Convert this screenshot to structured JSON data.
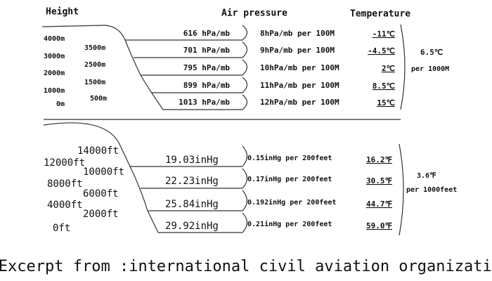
{
  "metric": {
    "headers": {
      "height": "Height",
      "pressure": "Air pressure",
      "temperature": "Temperature"
    },
    "heights_left": [
      "4000m",
      "3000m",
      "2000m",
      "1000m",
      "0m"
    ],
    "heights_right": [
      "3500m",
      "2500m",
      "1500m",
      "500m"
    ],
    "pressures": [
      "616 hPa/mb",
      "701 hPa/mb",
      "795 hPa/mb",
      "899 hPa/mb",
      "1013 hPa/mb"
    ],
    "rates": [
      "8hPa/mb per 100M",
      "9hPa/mb per 100M",
      "10hPa/mb per 100M",
      "11hPa/mb per 100M",
      "12hPa/mb per 100M"
    ],
    "temperatures": [
      "-11℃",
      "-4.5℃",
      "2℃",
      "8.5℃",
      "15℃"
    ],
    "lapse": [
      "6.5℃",
      "per 1000M"
    ]
  },
  "imperial": {
    "heights_left": [
      "12000ft",
      "8000ft",
      "4000ft",
      "0ft"
    ],
    "heights_right": [
      "14000ft",
      "10000ft",
      "6000ft",
      "2000ft"
    ],
    "pressures": [
      "19.03inHg",
      "22.23inHg",
      "25.84inHg",
      "29.92inHg"
    ],
    "rates": [
      "0.15inHg per 200feet",
      "0.17inHg per 200feet",
      "0.192inHg per 200feet",
      "0.21inHg per 200feet"
    ],
    "temperatures": [
      "16.2℉",
      "30.5℉",
      "44.7℉",
      "59.0℉"
    ],
    "lapse": [
      "3.6℉",
      "per 1000feet"
    ]
  },
  "caption": "Excerpt from :international civil aviation organization"
}
